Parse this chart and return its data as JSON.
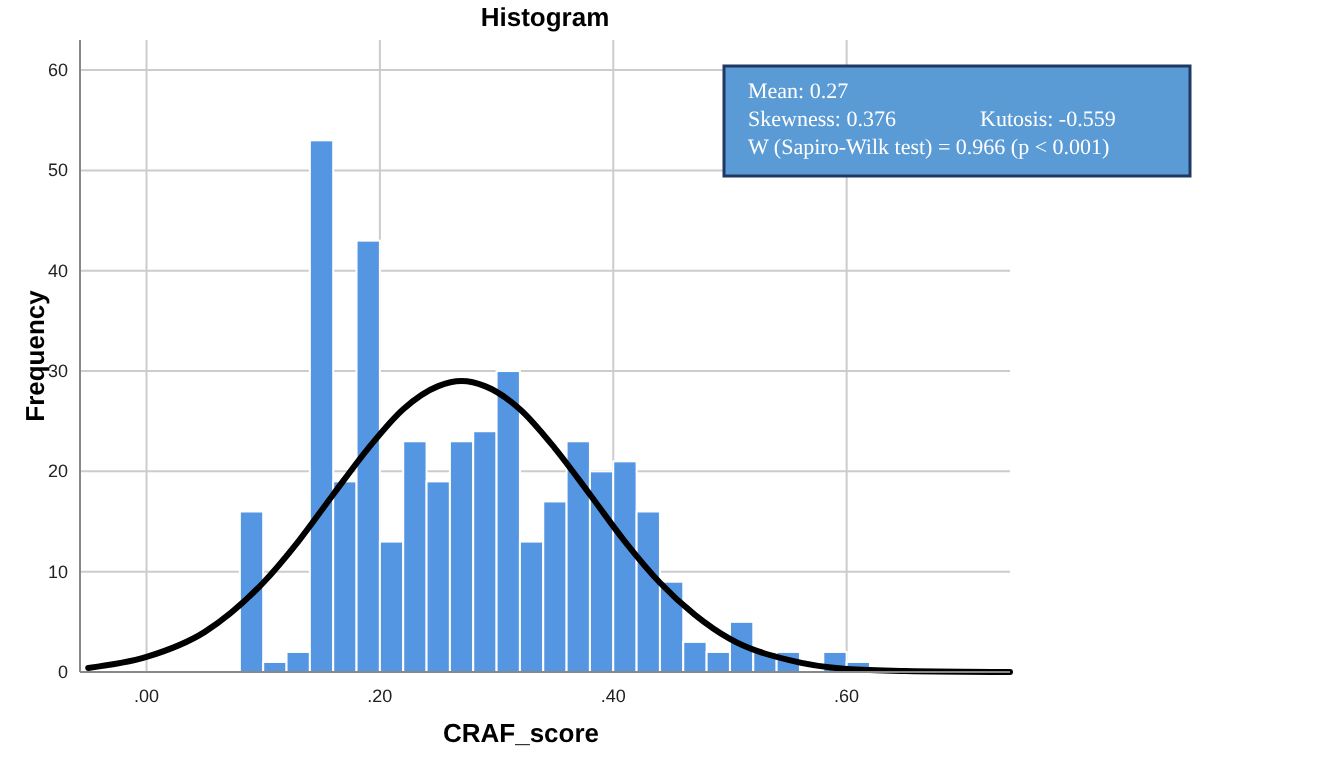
{
  "chart_data": {
    "type": "histogram",
    "title": "Histogram",
    "xlabel": "CRAF_score",
    "ylabel": "Frequency",
    "bins": [
      0.08,
      0.1,
      0.12,
      0.14,
      0.16,
      0.18,
      0.2,
      0.22,
      0.24,
      0.26,
      0.28,
      0.3,
      0.32,
      0.34,
      0.36,
      0.38,
      0.4,
      0.42,
      0.44,
      0.46,
      0.48,
      0.5,
      0.52,
      0.54,
      0.56,
      0.58,
      0.6,
      0.62
    ],
    "values": [
      16,
      1,
      2,
      53,
      19,
      43,
      13,
      23,
      19,
      23,
      24,
      30,
      13,
      17,
      23,
      20,
      21,
      16,
      9,
      3,
      2,
      5,
      2,
      2,
      0,
      2,
      1
    ],
    "color": "#5596e3",
    "series": [
      {
        "type": "line",
        "color": "#000000",
        "x": [
          -0.05,
          0,
          0.05,
          0.1,
          0.13,
          0.16,
          0.19,
          0.22,
          0.25,
          0.27,
          0.29,
          0.32,
          0.35,
          0.38,
          0.41,
          0.44,
          0.47,
          0.5,
          0.55,
          0.6,
          0.65,
          0.74
        ],
        "values": [
          0.4,
          1.5,
          4,
          8.9,
          13,
          17.7,
          22.3,
          26.2,
          28.5,
          29,
          28.5,
          26.2,
          22.3,
          17.7,
          13,
          8.9,
          5.7,
          3.3,
          1.2,
          0.3,
          0.1,
          0
        ]
      }
    ],
    "xlim": [
      -0.057,
      0.74
    ],
    "ylim": [
      0,
      63
    ],
    "xticks": [
      {
        "value": 0,
        "label": ".00"
      },
      {
        "value": 0.2,
        "label": ".20"
      },
      {
        "value": 0.4,
        "label": ".40"
      },
      {
        "value": 0.6,
        "label": ".60"
      }
    ],
    "yticks": [
      0,
      10,
      20,
      30,
      40,
      50,
      60
    ],
    "grid": true,
    "annotations": [
      "Mean: 0.27",
      "Skewness: 0.376",
      "Kutosis: -0.559",
      "W (Sapiro-Wilk test) = 0.966 (p < 0.001)"
    ]
  }
}
